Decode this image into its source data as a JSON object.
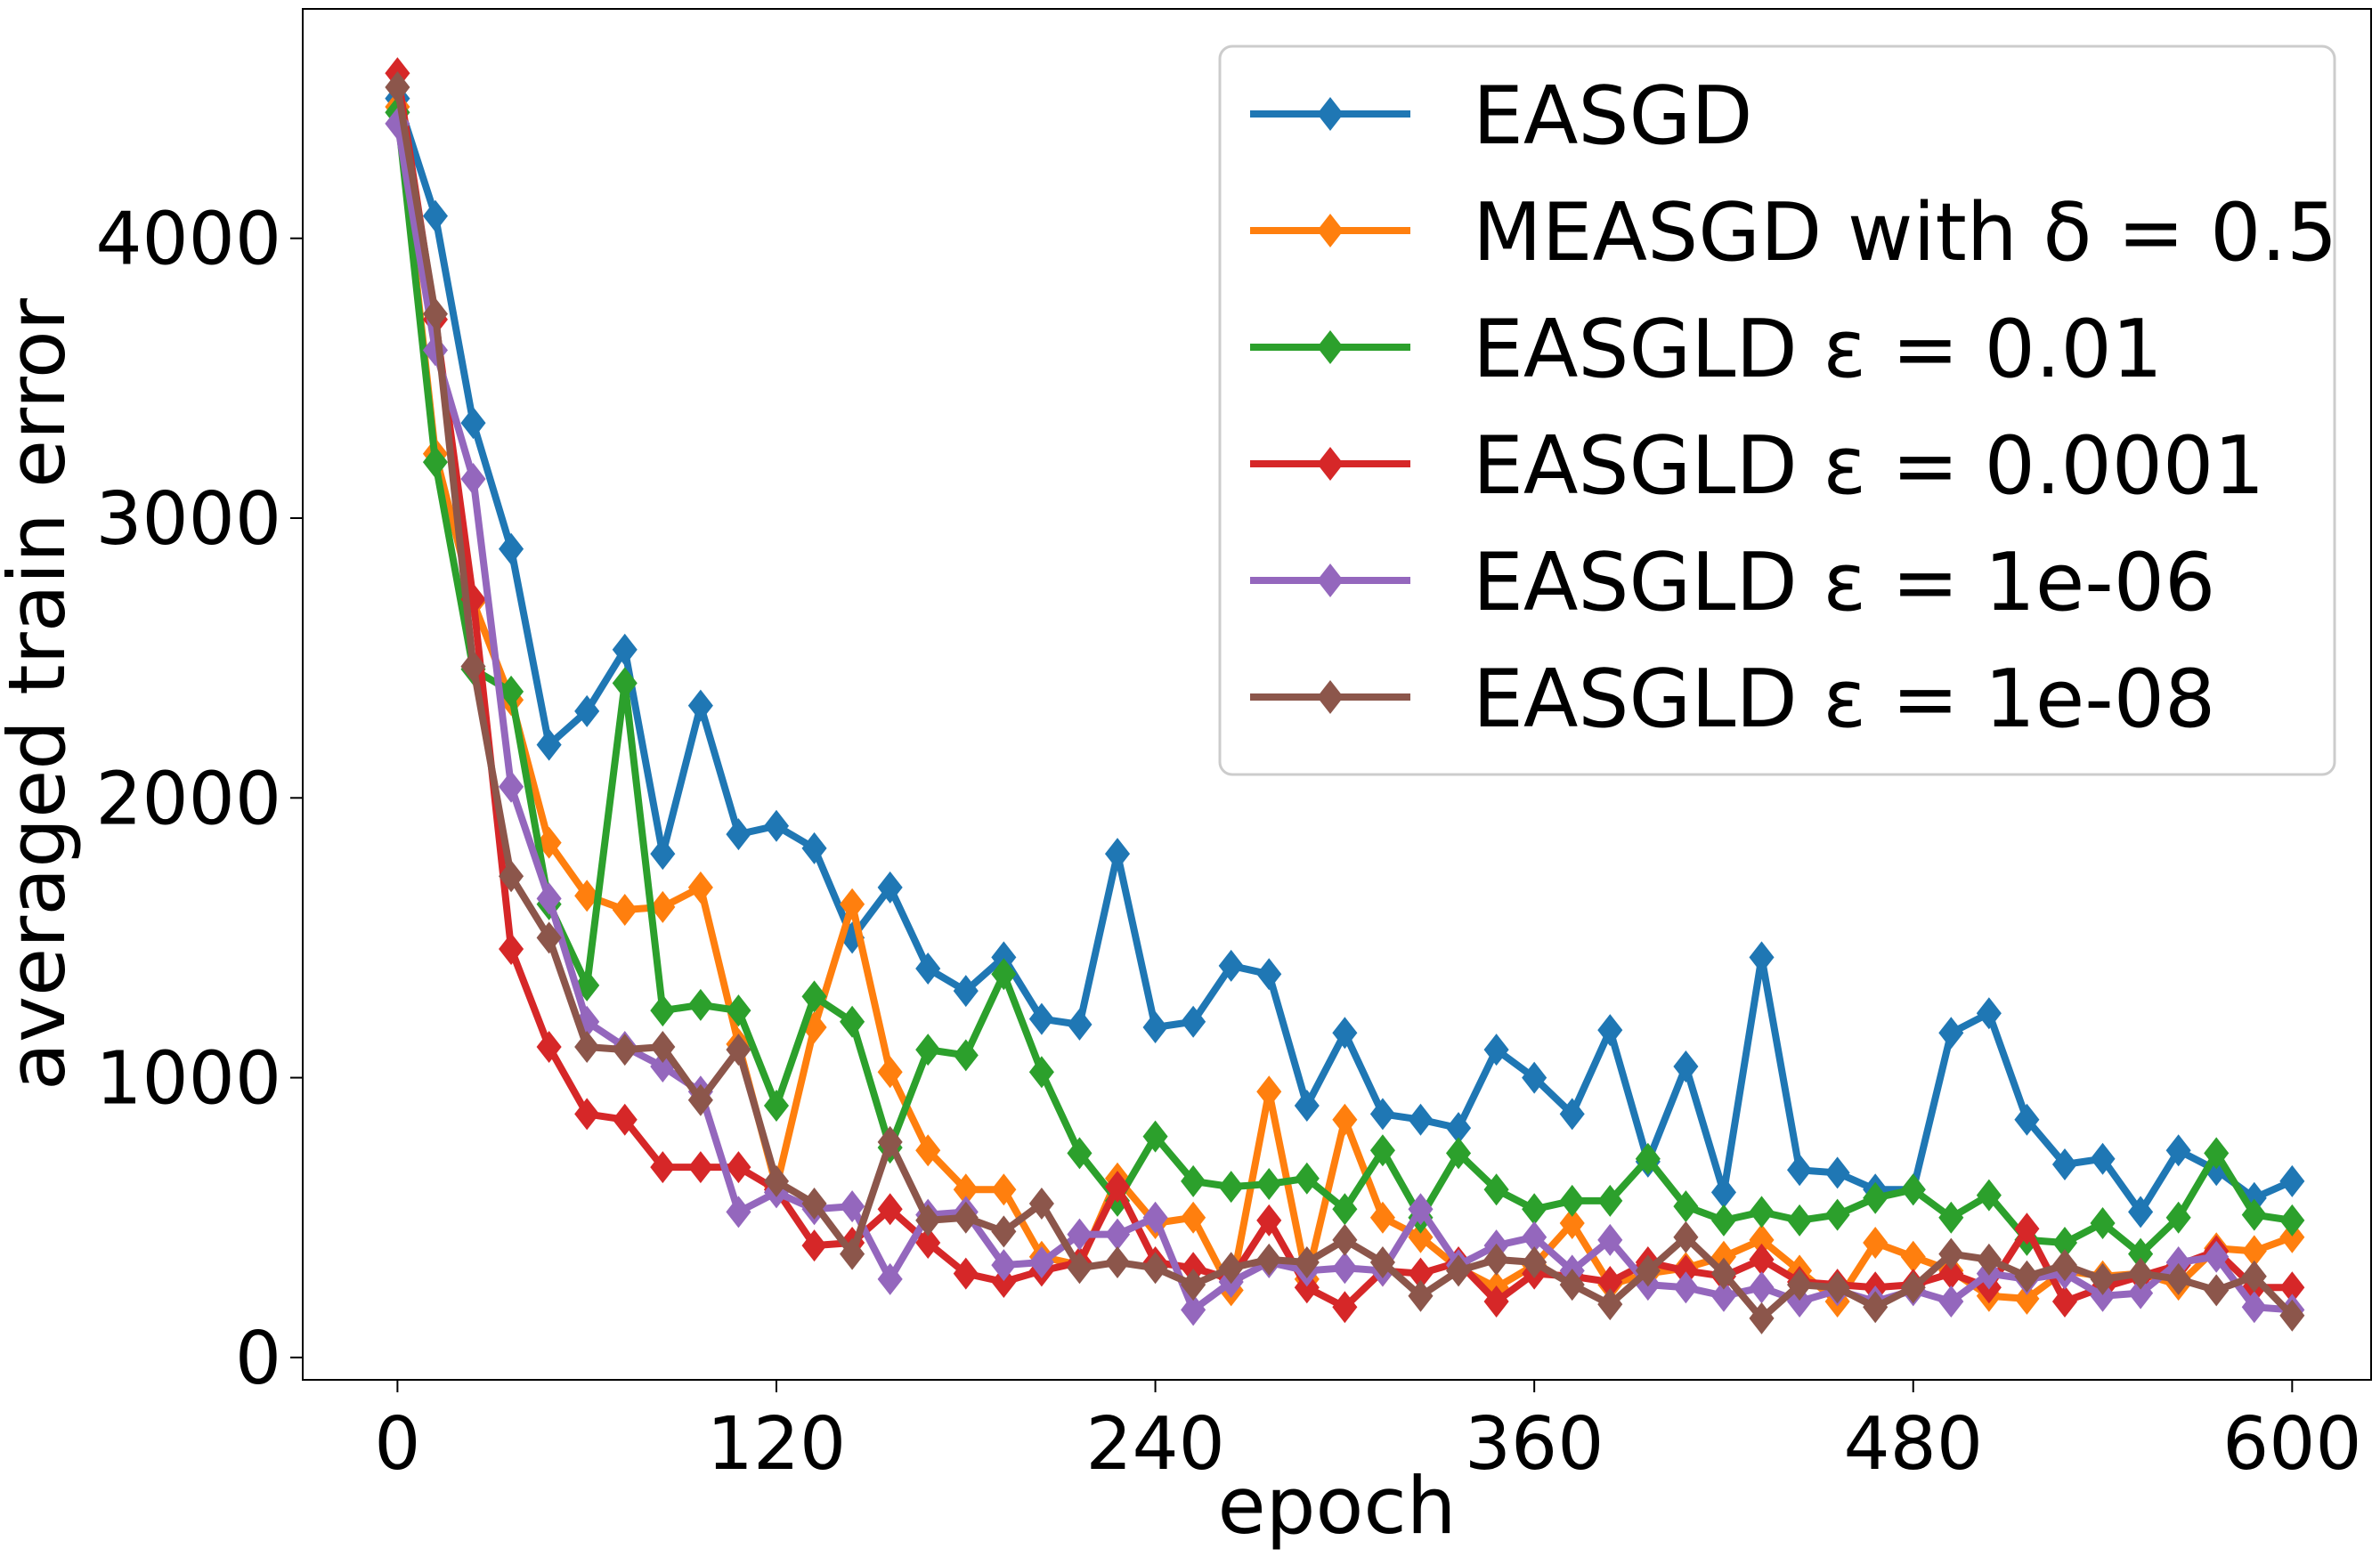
{
  "chart_data": {
    "type": "line",
    "xlabel": "epoch",
    "ylabel": "averaged train error",
    "xlim": [
      -30,
      625
    ],
    "ylim": [
      -80,
      4820
    ],
    "xticks": [
      0,
      120,
      240,
      360,
      480,
      600
    ],
    "yticks": [
      0,
      1000,
      2000,
      3000,
      4000
    ],
    "grid": false,
    "legend_position": "upper-right",
    "x": [
      0,
      12,
      24,
      36,
      48,
      60,
      72,
      84,
      96,
      108,
      120,
      132,
      144,
      156,
      168,
      180,
      192,
      204,
      216,
      228,
      240,
      252,
      264,
      276,
      288,
      300,
      312,
      324,
      336,
      348,
      360,
      372,
      384,
      396,
      408,
      420,
      432,
      444,
      456,
      468,
      480,
      492,
      504,
      516,
      528,
      540,
      552,
      564,
      576,
      588,
      600
    ],
    "series": [
      {
        "name": "EASGD",
        "color": "#1f77b4",
        "values": [
          4500,
          4080,
          3340,
          2890,
          2190,
          2310,
          2530,
          1800,
          2330,
          1870,
          1900,
          1820,
          1500,
          1680,
          1390,
          1310,
          1430,
          1210,
          1190,
          1800,
          1180,
          1200,
          1400,
          1370,
          900,
          1160,
          870,
          850,
          820,
          1100,
          1000,
          870,
          1170,
          700,
          1040,
          590,
          1430,
          670,
          660,
          600,
          600,
          1160,
          1230,
          850,
          690,
          710,
          520,
          740,
          670,
          570,
          630
        ]
      },
      {
        "name": "MEASGD with δ = 0.5",
        "color": "#ff7f0e",
        "values": [
          4470,
          3230,
          2700,
          2350,
          1840,
          1650,
          1600,
          1610,
          1680,
          1120,
          610,
          1180,
          1620,
          1020,
          740,
          600,
          600,
          360,
          330,
          640,
          480,
          500,
          240,
          950,
          280,
          850,
          500,
          430,
          320,
          250,
          330,
          480,
          260,
          300,
          320,
          360,
          420,
          310,
          200,
          410,
          360,
          310,
          220,
          210,
          310,
          290,
          300,
          260,
          390,
          380,
          430
        ]
      },
      {
        "name": "EASGLD ε = 0.01",
        "color": "#2ca02c",
        "values": [
          4450,
          3200,
          2460,
          2380,
          1620,
          1330,
          2410,
          1240,
          1260,
          1240,
          900,
          1290,
          1200,
          750,
          1100,
          1080,
          1370,
          1020,
          730,
          560,
          790,
          630,
          610,
          620,
          640,
          530,
          740,
          500,
          730,
          600,
          530,
          560,
          560,
          710,
          540,
          490,
          520,
          490,
          510,
          570,
          600,
          500,
          580,
          420,
          410,
          480,
          370,
          500,
          730,
          510,
          490
        ]
      },
      {
        "name": "EASGLD ε = 0.0001",
        "color": "#d62728",
        "values": [
          4590,
          3710,
          2710,
          1460,
          1110,
          870,
          850,
          680,
          680,
          680,
          600,
          400,
          410,
          530,
          410,
          300,
          270,
          310,
          340,
          610,
          340,
          320,
          280,
          490,
          250,
          180,
          310,
          300,
          340,
          200,
          300,
          290,
          270,
          340,
          310,
          290,
          350,
          270,
          260,
          250,
          260,
          300,
          250,
          460,
          200,
          250,
          290,
          330,
          380,
          250,
          250
        ]
      },
      {
        "name": "EASGLD ε = 1e-06",
        "color": "#9467bd",
        "values": [
          4410,
          3600,
          3140,
          2040,
          1640,
          1200,
          1110,
          1040,
          950,
          520,
          590,
          530,
          540,
          280,
          510,
          520,
          330,
          340,
          440,
          440,
          500,
          170,
          270,
          340,
          310,
          320,
          310,
          530,
          330,
          400,
          430,
          310,
          420,
          260,
          250,
          220,
          250,
          200,
          240,
          200,
          240,
          200,
          300,
          280,
          300,
          220,
          230,
          340,
          360,
          180,
          170
        ]
      },
      {
        "name": "EASGLD ε = 1e-08",
        "color": "#8c564b",
        "values": [
          4540,
          3730,
          2470,
          1720,
          1500,
          1110,
          1100,
          1110,
          920,
          1100,
          630,
          550,
          370,
          770,
          490,
          500,
          450,
          550,
          320,
          340,
          320,
          260,
          320,
          350,
          340,
          420,
          340,
          220,
          310,
          350,
          340,
          260,
          190,
          310,
          430,
          300,
          140,
          260,
          250,
          180,
          250,
          370,
          350,
          290,
          330,
          280,
          300,
          280,
          240,
          290,
          150
        ]
      }
    ]
  }
}
